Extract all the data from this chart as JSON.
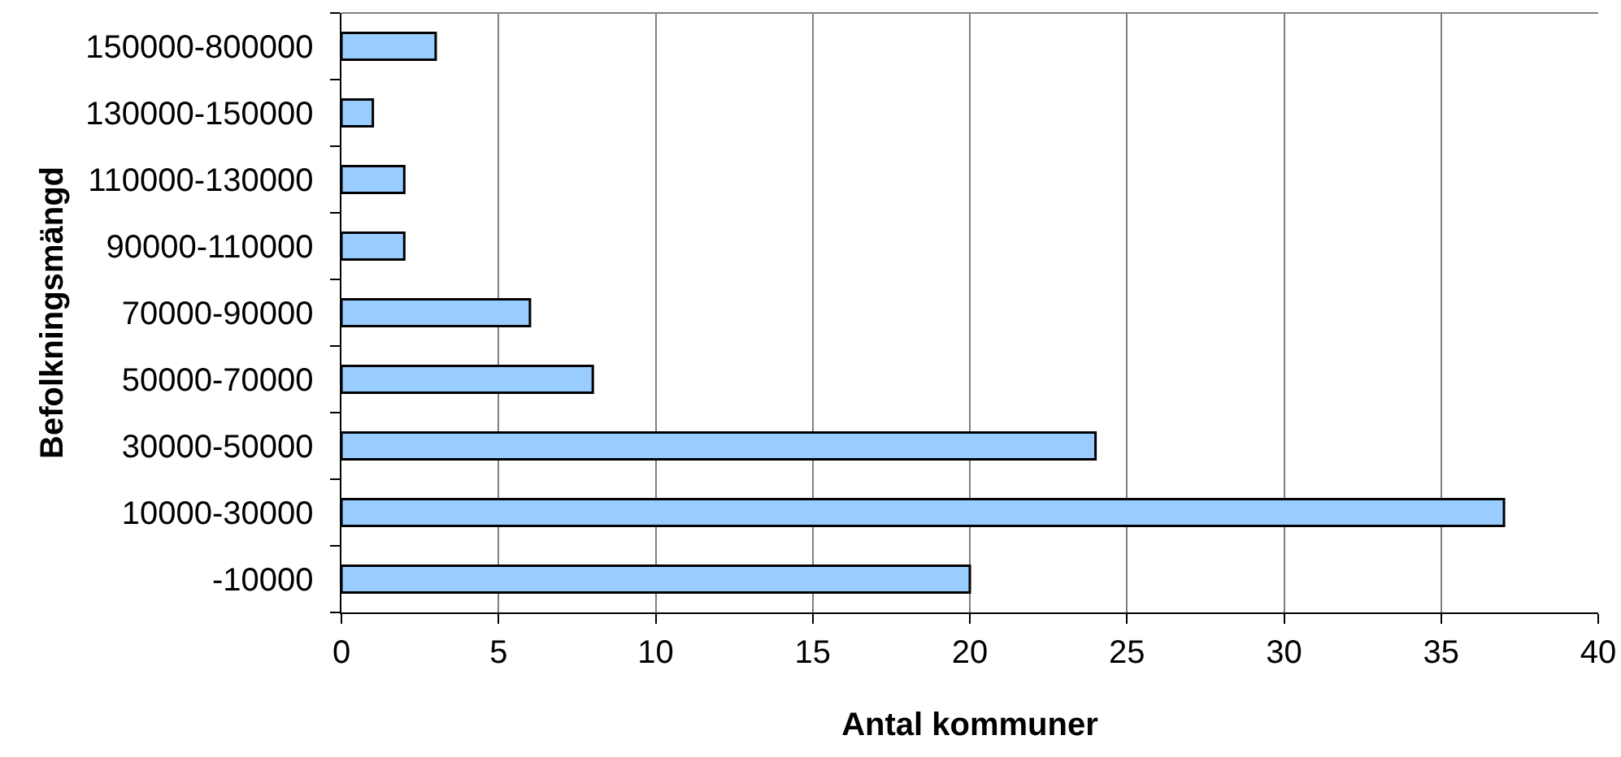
{
  "chart_data": {
    "type": "bar",
    "orientation": "horizontal",
    "xlabel": "Antal kommuner",
    "ylabel": "Befolkningsmängd",
    "categories": [
      "150000-800000",
      "130000-150000",
      "110000-130000",
      "90000-110000",
      "70000-90000",
      "50000-70000",
      "30000-50000",
      "10000-30000",
      "-10000"
    ],
    "values": [
      3,
      1,
      2,
      2,
      6,
      8,
      24,
      37,
      20
    ],
    "color": "#99ccff",
    "xlim": [
      0,
      40
    ],
    "xticks": [
      0,
      5,
      10,
      15,
      20,
      25,
      30,
      35,
      40
    ],
    "grid": "x"
  }
}
